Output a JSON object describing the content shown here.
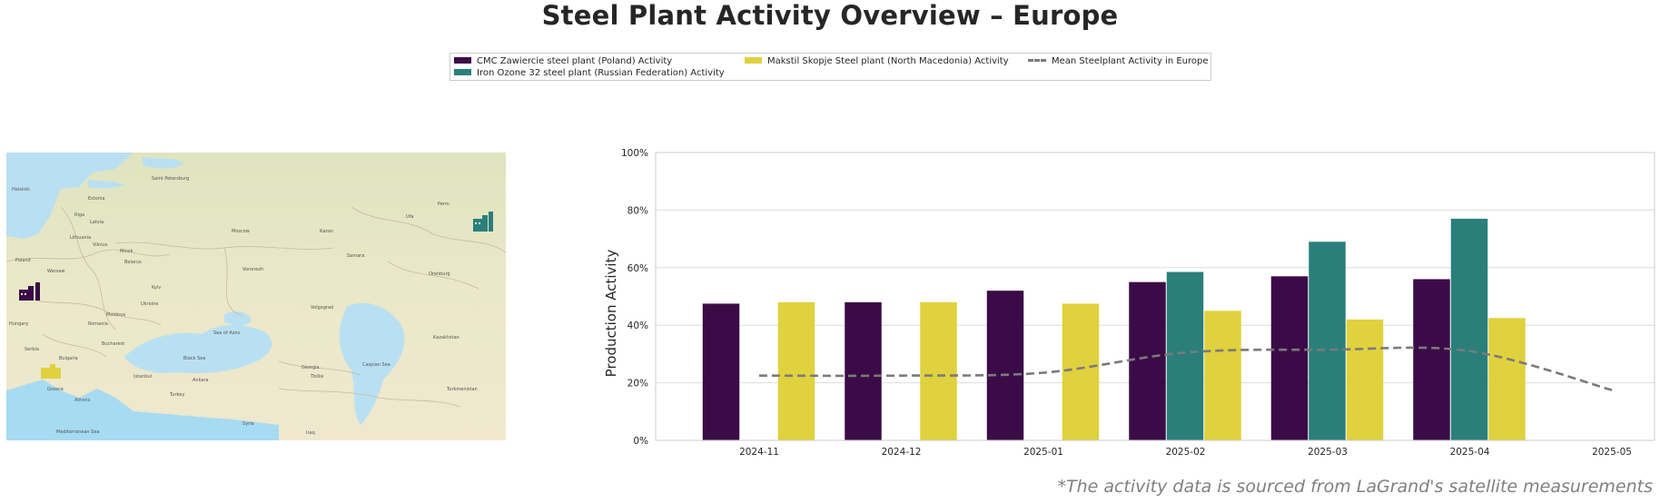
{
  "title": "Steel Plant Activity Overview – Europe",
  "footnote": "*The activity data is sourced from LaGrand's satellite measurements",
  "legend": {
    "items": [
      {
        "label": "CMC Zawiercie steel plant (Poland) Activity",
        "color": "#3b0b47"
      },
      {
        "label": "Iron Ozone 32 steel plant (Russian Federation) Activity",
        "color": "#2a7f7b"
      },
      {
        "label": "Makstil Skopje Steel plant (North Macedonia) Activity",
        "color": "#e0d13e"
      },
      {
        "label": "Mean Steelplant Activity in Europe",
        "color": "#7a7a7a"
      }
    ]
  },
  "map": {
    "labels": [
      "Helsinki",
      "Saint Petersburg",
      "Estonia",
      "Riga",
      "Latvia",
      "Lithuania",
      "Vilnius",
      "Minsk",
      "Belarus",
      "Moscow",
      "Warsaw",
      "Poland",
      "Kyiv",
      "Ukraine",
      "Moldova",
      "Romania",
      "Bucharest",
      "Hungary",
      "Serbia",
      "Bulgaria",
      "Black Sea",
      "Turkey",
      "Ankara",
      "Istanbul",
      "Greece",
      "Athens",
      "Georgia",
      "Tbilisi",
      "Kazakhstan",
      "Caspian Sea",
      "Sea of Azov",
      "Kazan",
      "Samara",
      "Volgograd",
      "Voronezh",
      "Perm",
      "Ufa",
      "Orenburg",
      "Syria",
      "Iraq",
      "Turkmenistan",
      "Mediterranean Sea"
    ],
    "markers": [
      {
        "name": "CMC Zawiercie",
        "color": "#3b0b47"
      },
      {
        "name": "Iron Ozone 32",
        "color": "#2a7f7b"
      },
      {
        "name": "Makstil Skopje",
        "color": "#e0d13e"
      }
    ]
  },
  "chart_data": {
    "type": "bar",
    "ylabel": "Production Activity",
    "ylim": [
      0,
      100
    ],
    "yticks": [
      "0%",
      "20%",
      "40%",
      "60%",
      "80%",
      "100%"
    ],
    "grid": true,
    "legend_position": "top",
    "categories": [
      "2024-11",
      "2024-12",
      "2025-01",
      "2025-02",
      "2025-03",
      "2025-04",
      "2025-05"
    ],
    "series": [
      {
        "name": "CMC Zawiercie steel plant (Poland) Activity",
        "color": "#3b0b47",
        "values": [
          47.5,
          48,
          52,
          55,
          57,
          56,
          null
        ]
      },
      {
        "name": "Iron Ozone 32 steel plant (Russian Federation) Activity",
        "color": "#2a7f7b",
        "values": [
          null,
          null,
          null,
          58.5,
          69,
          77,
          null
        ]
      },
      {
        "name": "Makstil Skopje Steel plant (North Macedonia) Activity",
        "color": "#e0d13e",
        "values": [
          48,
          48,
          47.5,
          45,
          42,
          42.5,
          null
        ]
      }
    ],
    "line": {
      "name": "Mean Steelplant Activity in Europe",
      "color": "#7a7a7a",
      "type": "dashed",
      "values": [
        22.5,
        22.5,
        23.5,
        30.5,
        31.5,
        31,
        17.5
      ]
    }
  }
}
